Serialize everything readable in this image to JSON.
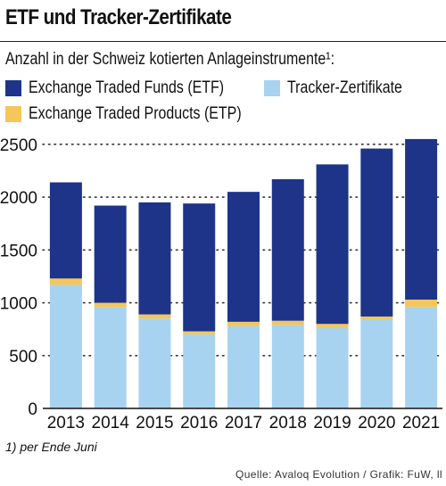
{
  "title": "ETF und Tracker-Zertifikate",
  "subtitle": "Anzahl in der Schweiz kotierten Anlageinstrumente¹:",
  "footnote": "1) per Ende Juni",
  "source": "Quelle: Avaloq Evolution / Grafik: FuW, ll",
  "colors": {
    "etf": "#1e3489",
    "tracker": "#a7d3f0",
    "etp": "#f5c65a"
  },
  "legend": [
    {
      "label": "Exchange Traded Funds (ETF)",
      "color": "#1e3489"
    },
    {
      "label": "Tracker-Zertifikate",
      "color": "#a7d3f0"
    },
    {
      "label": "Exchange Traded Products (ETP)",
      "color": "#f5c65a"
    }
  ],
  "chart_data": {
    "type": "bar",
    "stacked": true,
    "categories": [
      "2013",
      "2014",
      "2015",
      "2016",
      "2017",
      "2018",
      "2019",
      "2020",
      "2021"
    ],
    "series": [
      {
        "name": "Tracker-Zertifikate",
        "color": "#a7d3f0",
        "values": [
          1170,
          960,
          850,
          700,
          780,
          790,
          760,
          840,
          960
        ]
      },
      {
        "name": "Exchange Traded Products (ETP)",
        "color": "#f5c65a",
        "values": [
          60,
          40,
          40,
          30,
          40,
          40,
          40,
          30,
          70
        ]
      },
      {
        "name": "Exchange Traded Funds (ETF)",
        "color": "#1e3489",
        "values": [
          910,
          920,
          1060,
          1210,
          1230,
          1340,
          1510,
          1590,
          1520
        ]
      }
    ],
    "yticks": [
      0,
      500,
      1000,
      1500,
      2000,
      2500
    ],
    "ylim": [
      0,
      2600
    ],
    "grid": true
  }
}
